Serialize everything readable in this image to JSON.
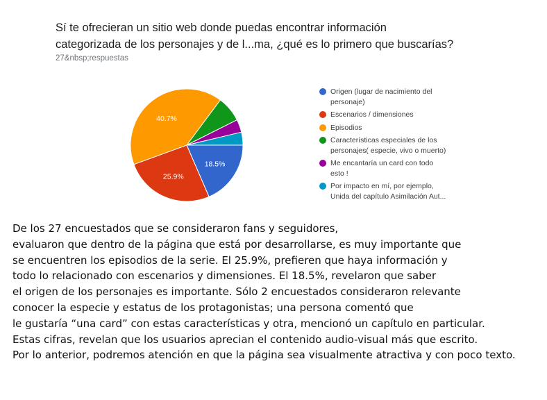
{
  "chart_data": {
    "type": "pie",
    "title": [
      "Sí te ofrecieran un sitio web donde puedas encontrar información",
      "categorizada de los personajes y de l...ma, ¿qué es lo primero que buscarías?"
    ],
    "subtitle": "27&nbsp;respuestas",
    "slices": [
      {
        "legend": [
          "Origen (lugar de nacimiento del",
          "personaje)"
        ],
        "value": 18.5,
        "label": "18.5%",
        "color": "#3366cc"
      },
      {
        "legend": [
          "Escenarios / dimensiones"
        ],
        "value": 25.9,
        "label": "25.9%",
        "color": "#dc3912"
      },
      {
        "legend": [
          "Episodios"
        ],
        "value": 40.7,
        "label": "40.7%",
        "color": "#ff9900"
      },
      {
        "legend": [
          "Características especiales de los",
          "personajes( especie, vivo o muerto)"
        ],
        "value": 7.4,
        "label": "",
        "color": "#109618"
      },
      {
        "legend": [
          "Me encantaría un card con todo",
          "esto !"
        ],
        "value": 3.7,
        "label": "",
        "color": "#990099"
      },
      {
        "legend": [
          "Por impacto en mí, por ejemplo,",
          "Unida del capítulo Asimilación Aut..."
        ],
        "value": 3.7,
        "label": "",
        "color": "#0099c6"
      }
    ]
  },
  "paragraph": [
    "De los 27 encuestados que se consideraron fans y seguidores,",
    "evaluaron que dentro de la página que está por desarrollarse, es muy importante que",
    "se encuentren los episodios de la serie. El 25.9%, prefieren que haya información y",
    "todo lo relacionado con escenarios y dimensiones. El 18.5%, revelaron que saber",
    "el origen de los personajes es importante. Sólo 2 encuestados consideraron relevante",
    "conocer la especie y estatus de los protagonistas; una persona comentó que",
    "le gustaría “una card” con estas características y otra, mencionó un capítulo en particular.",
    "Estas cifras, revelan que los usuarios aprecian el contenido audio-visual más que escrito.",
    "Por lo anterior, podremos atención en que la página sea visualmente atractiva y con poco texto."
  ]
}
